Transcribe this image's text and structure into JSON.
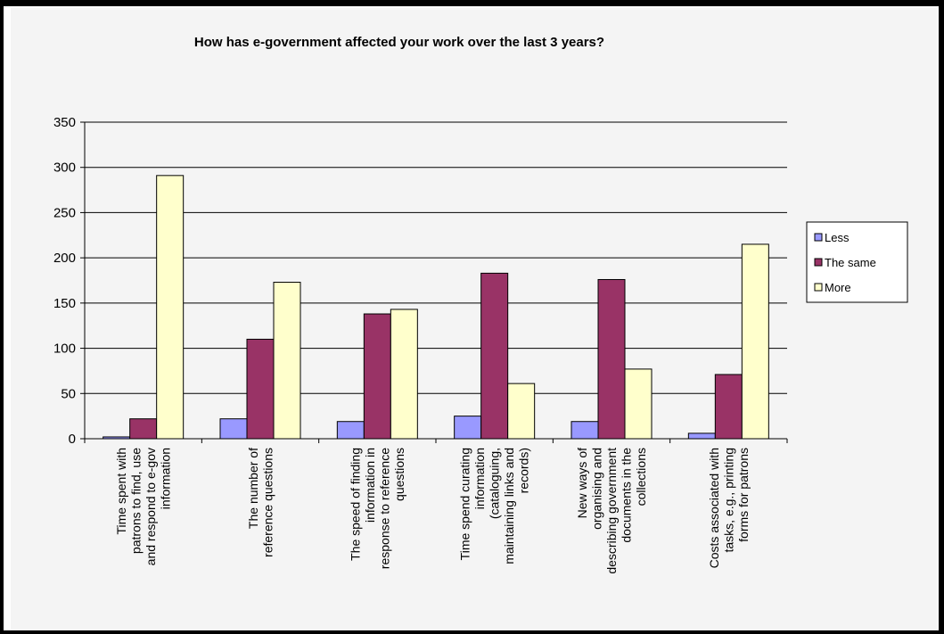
{
  "chart_data": {
    "type": "bar",
    "title": "How has e-government affected your work over the last 3 years?",
    "xlabel": "",
    "ylabel": "",
    "ylim": [
      0,
      350
    ],
    "yticks": [
      0,
      50,
      100,
      150,
      200,
      250,
      300,
      350
    ],
    "grid": true,
    "legend_position": "right",
    "categories": [
      [
        "Time spent with",
        "patrons to find, use",
        "and respond to e-gov",
        "information"
      ],
      [
        "The number of",
        "reference questions"
      ],
      [
        "The speed of finding",
        "information in",
        "response to reference",
        "questions"
      ],
      [
        "Time spend curating",
        "information",
        "(cataloguing,",
        "maintaining links and",
        "records)"
      ],
      [
        "New ways of",
        "organising and",
        "describing government",
        "documents in the",
        "collections"
      ],
      [
        "Costs associated with",
        "tasks, e.g., printing",
        "forms for patrons"
      ]
    ],
    "series": [
      {
        "name": "Less",
        "color": "#9999ff",
        "values": [
          2,
          22,
          19,
          25,
          19,
          6
        ]
      },
      {
        "name": "The same",
        "color": "#993366",
        "values": [
          22,
          110,
          138,
          183,
          176,
          71
        ]
      },
      {
        "name": "More",
        "color": "#ffffcc",
        "values": [
          291,
          173,
          143,
          61,
          77,
          215
        ]
      }
    ]
  }
}
